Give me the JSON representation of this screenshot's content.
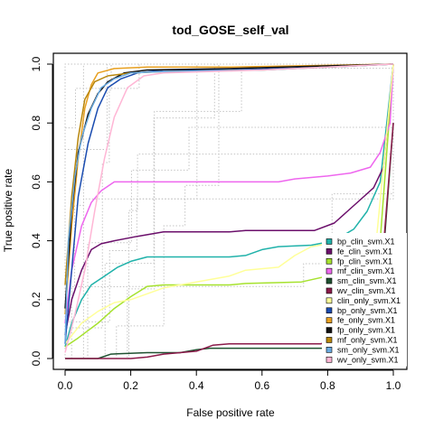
{
  "chart_data": {
    "type": "line",
    "title": "tod_GOSE_self_val",
    "xlabel": "False positive rate",
    "ylabel": "True positive rate",
    "xlim": [
      0,
      1
    ],
    "ylim": [
      0,
      1
    ],
    "xticks": [
      "0.0",
      "0.2",
      "0.4",
      "0.6",
      "0.8",
      "1.0"
    ],
    "yticks": [
      "0.0",
      "0.2",
      "0.4",
      "0.6",
      "0.8",
      "1.0"
    ],
    "grid": false,
    "legend_position": "bottom-right",
    "background_curves": "light gray dotted ROC curves (bootstrap replicates)",
    "series": [
      {
        "name": "bp_clin_svm.X1",
        "color": "#20B2AA",
        "points": [
          [
            0,
            0.04
          ],
          [
            0.02,
            0.12
          ],
          [
            0.05,
            0.2
          ],
          [
            0.08,
            0.25
          ],
          [
            0.12,
            0.28
          ],
          [
            0.16,
            0.31
          ],
          [
            0.2,
            0.33
          ],
          [
            0.25,
            0.345
          ],
          [
            0.5,
            0.345
          ],
          [
            0.55,
            0.35
          ],
          [
            0.6,
            0.37
          ],
          [
            0.65,
            0.38
          ],
          [
            0.75,
            0.385
          ],
          [
            0.82,
            0.4
          ],
          [
            0.88,
            0.44
          ],
          [
            0.92,
            0.5
          ],
          [
            0.96,
            0.6
          ],
          [
            1,
            1
          ]
        ]
      },
      {
        "name": "fe_clin_svm.X1",
        "color": "#6B0F6B",
        "points": [
          [
            0,
            0.08
          ],
          [
            0.02,
            0.2
          ],
          [
            0.05,
            0.3
          ],
          [
            0.08,
            0.37
          ],
          [
            0.11,
            0.39
          ],
          [
            0.15,
            0.4
          ],
          [
            0.22,
            0.415
          ],
          [
            0.3,
            0.43
          ],
          [
            0.5,
            0.43
          ],
          [
            0.55,
            0.435
          ],
          [
            0.76,
            0.435
          ],
          [
            0.82,
            0.46
          ],
          [
            0.86,
            0.5
          ],
          [
            0.9,
            0.54
          ],
          [
            0.94,
            0.58
          ],
          [
            0.97,
            0.65
          ],
          [
            1,
            1
          ]
        ]
      },
      {
        "name": "fp_clin_svm.X1",
        "color": "#A6E22E",
        "points": [
          [
            0,
            0.04
          ],
          [
            0.04,
            0.07
          ],
          [
            0.1,
            0.12
          ],
          [
            0.15,
            0.17
          ],
          [
            0.2,
            0.21
          ],
          [
            0.25,
            0.245
          ],
          [
            0.3,
            0.25
          ],
          [
            0.5,
            0.25
          ],
          [
            0.55,
            0.255
          ],
          [
            0.72,
            0.26
          ],
          [
            0.8,
            0.28
          ],
          [
            0.86,
            0.3
          ],
          [
            0.92,
            0.33
          ],
          [
            0.96,
            0.4
          ],
          [
            1,
            1
          ]
        ]
      },
      {
        "name": "mf_clin_svm.X1",
        "color": "#EE66EE",
        "points": [
          [
            0,
            0.12
          ],
          [
            0.02,
            0.3
          ],
          [
            0.05,
            0.45
          ],
          [
            0.08,
            0.53
          ],
          [
            0.11,
            0.57
          ],
          [
            0.15,
            0.6
          ],
          [
            0.3,
            0.6
          ],
          [
            0.65,
            0.6
          ],
          [
            0.7,
            0.61
          ],
          [
            0.8,
            0.62
          ],
          [
            0.87,
            0.63
          ],
          [
            0.93,
            0.65
          ],
          [
            0.96,
            0.7
          ],
          [
            0.99,
            0.8
          ],
          [
            1,
            1
          ]
        ]
      },
      {
        "name": "sm_clin_svm.X1",
        "color": "#1F5130",
        "points": [
          [
            0,
            0
          ],
          [
            0.1,
            0
          ],
          [
            0.14,
            0.015
          ],
          [
            0.25,
            0.02
          ],
          [
            0.35,
            0.02
          ],
          [
            0.4,
            0.03
          ],
          [
            0.44,
            0.035
          ],
          [
            0.8,
            0.035
          ],
          [
            0.9,
            0.04
          ],
          [
            0.95,
            0.06
          ],
          [
            1,
            0.8
          ]
        ]
      },
      {
        "name": "wv_clin_svm.X1",
        "color": "#8B1A4A",
        "points": [
          [
            0,
            0
          ],
          [
            0.2,
            0
          ],
          [
            0.25,
            0.005
          ],
          [
            0.3,
            0.015
          ],
          [
            0.35,
            0.02
          ],
          [
            0.4,
            0.025
          ],
          [
            0.45,
            0.045
          ],
          [
            0.5,
            0.05
          ],
          [
            0.78,
            0.05
          ],
          [
            0.82,
            0.07
          ],
          [
            0.88,
            0.08
          ],
          [
            0.95,
            0.1
          ],
          [
            1,
            0.8
          ]
        ]
      },
      {
        "name": "clin_only_svm.X1",
        "color": "#FFFF99",
        "points": [
          [
            0,
            0.05
          ],
          [
            0.05,
            0.12
          ],
          [
            0.1,
            0.16
          ],
          [
            0.15,
            0.19
          ],
          [
            0.2,
            0.2
          ],
          [
            0.25,
            0.22
          ],
          [
            0.3,
            0.24
          ],
          [
            0.4,
            0.26
          ],
          [
            0.5,
            0.28
          ],
          [
            0.55,
            0.3
          ],
          [
            0.65,
            0.31
          ],
          [
            0.7,
            0.35
          ],
          [
            0.75,
            0.38
          ],
          [
            0.85,
            0.4
          ],
          [
            0.95,
            0.42
          ],
          [
            1,
            1
          ]
        ]
      },
      {
        "name": "bp_only_svm.X1",
        "color": "#1A4CB0",
        "points": [
          [
            0,
            0.05
          ],
          [
            0.02,
            0.3
          ],
          [
            0.04,
            0.55
          ],
          [
            0.07,
            0.73
          ],
          [
            0.1,
            0.85
          ],
          [
            0.13,
            0.92
          ],
          [
            0.17,
            0.95
          ],
          [
            0.22,
            0.97
          ],
          [
            0.3,
            0.98
          ],
          [
            0.5,
            0.98
          ],
          [
            0.8,
            0.99
          ],
          [
            1,
            1
          ]
        ]
      },
      {
        "name": "fe_only_svm.X1",
        "color": "#E8A020",
        "points": [
          [
            0,
            0.15
          ],
          [
            0.02,
            0.45
          ],
          [
            0.04,
            0.68
          ],
          [
            0.06,
            0.85
          ],
          [
            0.08,
            0.93
          ],
          [
            0.1,
            0.97
          ],
          [
            0.15,
            0.985
          ],
          [
            0.25,
            0.99
          ],
          [
            0.5,
            0.99
          ],
          [
            1,
            1
          ]
        ]
      },
      {
        "name": "fp_only_svm.X1",
        "color": "#111111",
        "points": [
          [
            0,
            0.17
          ],
          [
            0.02,
            0.5
          ],
          [
            0.04,
            0.7
          ],
          [
            0.07,
            0.83
          ],
          [
            0.1,
            0.9
          ],
          [
            0.13,
            0.94
          ],
          [
            0.18,
            0.97
          ],
          [
            0.25,
            0.98
          ],
          [
            0.5,
            0.985
          ],
          [
            1,
            1
          ]
        ]
      },
      {
        "name": "mf_only_svm.X1",
        "color": "#B8860B",
        "points": [
          [
            0,
            0.25
          ],
          [
            0.02,
            0.55
          ],
          [
            0.04,
            0.75
          ],
          [
            0.06,
            0.88
          ],
          [
            0.09,
            0.94
          ],
          [
            0.13,
            0.96
          ],
          [
            0.2,
            0.97
          ],
          [
            0.3,
            0.975
          ],
          [
            0.6,
            0.98
          ],
          [
            1,
            1
          ]
        ]
      },
      {
        "name": "sm_only_svm.X1",
        "color": "#6AAAE0",
        "points": [
          [
            0,
            0.05
          ],
          [
            0.01,
            0.4
          ],
          [
            0.03,
            0.62
          ],
          [
            0.05,
            0.75
          ],
          [
            0.08,
            0.85
          ],
          [
            0.11,
            0.92
          ],
          [
            0.15,
            0.95
          ],
          [
            0.2,
            0.97
          ],
          [
            0.3,
            0.975
          ],
          [
            0.6,
            0.98
          ],
          [
            1,
            1
          ]
        ]
      },
      {
        "name": "wv_only_svm.X1",
        "color": "#FFB6D5",
        "points": [
          [
            0,
            0.02
          ],
          [
            0.03,
            0.15
          ],
          [
            0.06,
            0.3
          ],
          [
            0.09,
            0.5
          ],
          [
            0.12,
            0.68
          ],
          [
            0.15,
            0.82
          ],
          [
            0.19,
            0.92
          ],
          [
            0.24,
            0.96
          ],
          [
            0.3,
            0.97
          ],
          [
            0.6,
            0.98
          ],
          [
            1,
            1
          ]
        ]
      }
    ]
  }
}
